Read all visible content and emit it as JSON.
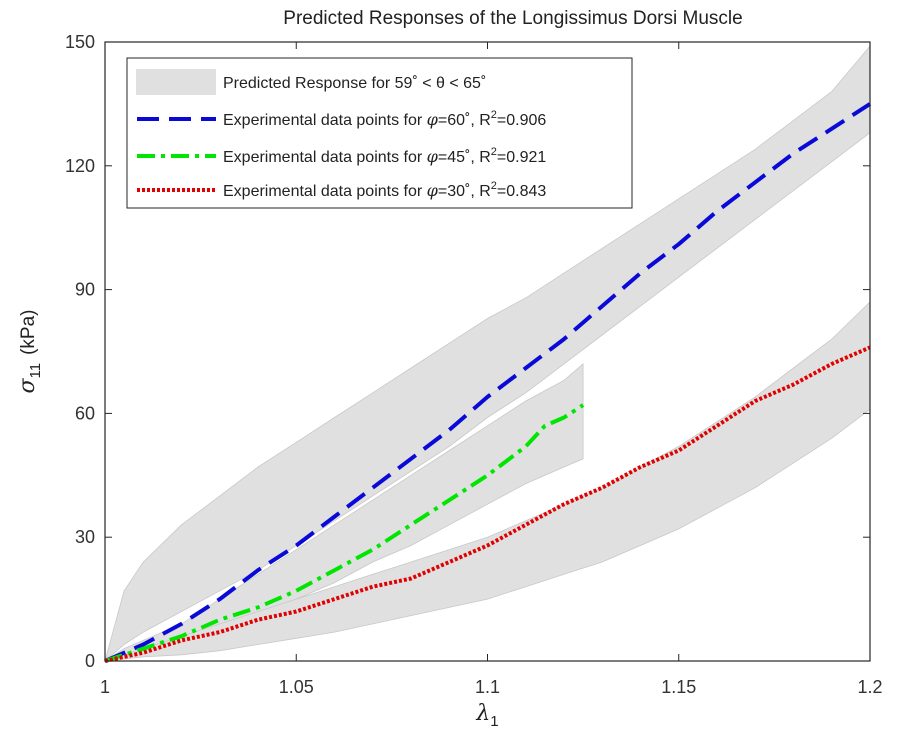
{
  "chart_data": {
    "type": "line",
    "title": "Predicted Responses of the Longissimus Dorsi Muscle",
    "xlabel": {
      "symbol": "λ",
      "subscript": "1"
    },
    "ylabel": {
      "symbol": "σ",
      "subscript": "11",
      "unit": "(kPa)"
    },
    "xlim": [
      1,
      1.2
    ],
    "ylim": [
      0,
      150
    ],
    "xticks": [
      1,
      1.05,
      1.1,
      1.15,
      1.2
    ],
    "xtick_labels": [
      "1",
      "1.05",
      "1.1",
      "1.15",
      "1.2"
    ],
    "yticks": [
      0,
      30,
      60,
      90,
      120,
      150
    ],
    "ytick_labels": [
      "0",
      "30",
      "60",
      "90",
      "120",
      "150"
    ],
    "grid": false,
    "legend_position": "top-left",
    "bands": [
      {
        "name": "Predicted Response for 59˚ < θ < 65˚",
        "color": "#e0e0e0",
        "x": [
          1,
          1.005,
          1.01,
          1.02,
          1.03,
          1.04,
          1.05,
          1.06,
          1.07,
          1.08,
          1.09,
          1.1,
          1.11,
          1.12,
          1.13,
          1.14,
          1.15,
          1.16,
          1.17,
          1.18,
          1.19,
          1.2
        ],
        "upper": [
          0,
          17,
          24,
          33,
          40,
          47,
          53,
          59,
          65,
          71,
          77,
          83,
          88,
          94,
          100,
          106,
          112,
          118,
          124,
          131,
          138,
          149
        ],
        "lower": [
          0,
          4,
          7,
          12,
          17,
          22,
          28,
          34,
          40,
          46,
          52,
          59,
          65,
          72,
          79,
          86,
          93,
          100,
          107,
          114,
          121,
          128
        ]
      },
      {
        "name": "",
        "color": "#e0e0e0",
        "x": [
          1,
          1.005,
          1.01,
          1.02,
          1.03,
          1.04,
          1.05,
          1.06,
          1.07,
          1.08,
          1.09,
          1.1,
          1.11,
          1.12,
          1.125
        ],
        "upper": [
          0,
          3,
          5,
          9,
          15,
          21,
          27,
          33,
          39,
          45,
          51,
          57,
          63,
          68,
          72
        ],
        "lower": [
          0,
          1,
          2,
          5,
          8,
          11,
          15,
          19,
          24,
          28,
          33,
          38,
          43,
          47,
          49
        ]
      },
      {
        "name": "",
        "color": "#e0e0e0",
        "x": [
          1,
          1.01,
          1.02,
          1.03,
          1.04,
          1.05,
          1.06,
          1.07,
          1.08,
          1.09,
          1.1,
          1.11,
          1.12,
          1.13,
          1.14,
          1.15,
          1.16,
          1.17,
          1.18,
          1.19,
          1.2
        ],
        "upper": [
          0,
          3,
          6,
          9,
          12,
          15,
          18,
          21,
          24,
          27,
          30,
          34,
          38,
          42,
          47,
          52,
          58,
          64,
          71,
          78,
          87
        ],
        "lower": [
          0,
          1,
          1.5,
          2.5,
          4,
          5.5,
          7,
          9,
          11,
          13,
          15,
          18,
          21,
          24,
          28,
          32,
          37,
          42,
          48,
          54,
          61
        ]
      }
    ],
    "series": [
      {
        "name": "Experimental data points for φ=60˚, R²=0.906",
        "label_parts": {
          "prefix": "Experimental data points for ",
          "sym": "φ",
          "rest": "=60˚, R",
          "sup": "2",
          "end": "=0.906"
        },
        "color": "#0a0ad8",
        "style": "dashed",
        "x": [
          1,
          1.01,
          1.02,
          1.03,
          1.04,
          1.05,
          1.06,
          1.07,
          1.08,
          1.09,
          1.1,
          1.11,
          1.12,
          1.13,
          1.14,
          1.15,
          1.16,
          1.17,
          1.18,
          1.19,
          1.2
        ],
        "y": [
          0,
          4,
          9,
          15,
          22,
          28,
          35,
          42,
          49,
          56,
          64,
          71,
          78,
          86,
          94,
          101,
          109,
          116,
          123,
          129,
          135
        ]
      },
      {
        "name": "Experimental data points for φ=45˚, R²=0.921",
        "label_parts": {
          "prefix": "Experimental data points for ",
          "sym": "φ",
          "rest": "=45˚, R",
          "sup": "2",
          "end": "=0.921"
        },
        "color": "#00e600",
        "style": "dashdot",
        "x": [
          1,
          1.01,
          1.02,
          1.03,
          1.04,
          1.05,
          1.06,
          1.07,
          1.08,
          1.09,
          1.1,
          1.11,
          1.115,
          1.12,
          1.125
        ],
        "y": [
          0,
          3,
          6,
          10,
          13,
          17,
          22,
          27,
          33,
          39,
          45,
          52,
          57,
          59,
          62
        ]
      },
      {
        "name": "Experimental data points for φ=30˚, R²=0.843",
        "label_parts": {
          "prefix": "Experimental data points for ",
          "sym": "φ",
          "rest": "=30˚, R",
          "sup": "2",
          "end": "=0.843"
        },
        "color": "#e00000",
        "style": "dotted",
        "x": [
          1,
          1.01,
          1.02,
          1.03,
          1.04,
          1.05,
          1.06,
          1.07,
          1.075,
          1.08,
          1.09,
          1.1,
          1.11,
          1.12,
          1.13,
          1.14,
          1.15,
          1.16,
          1.17,
          1.18,
          1.19,
          1.2
        ],
        "y": [
          0,
          2,
          5,
          7,
          10,
          12,
          15,
          18,
          19,
          20,
          24,
          28,
          33,
          38,
          42,
          47,
          51,
          57,
          63,
          67,
          72,
          76
        ]
      }
    ]
  }
}
